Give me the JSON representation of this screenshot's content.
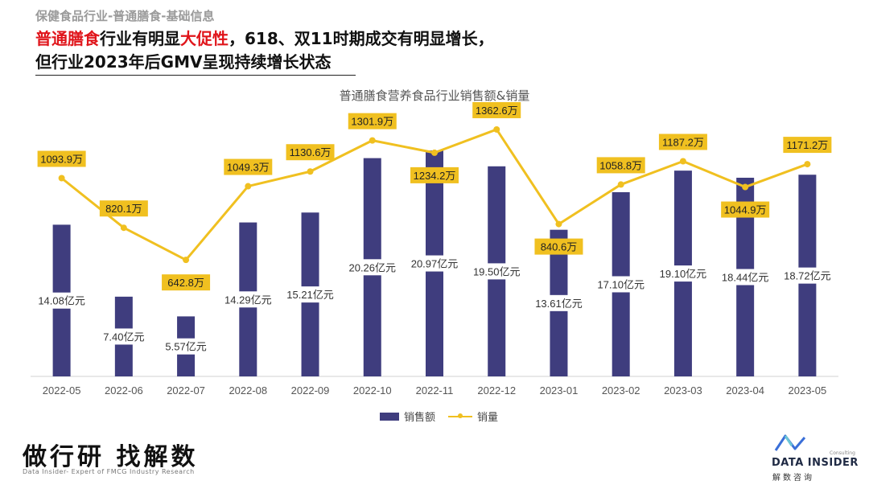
{
  "header": {
    "breadcrumb": "保健食品行业-普通膳食-基础信息",
    "headline_line1_red": "普通膳食",
    "headline_line1_a": "行业有明显",
    "headline_line1_red2": "大促性",
    "headline_line1_b": "，618、双11时期成交有明显增长，",
    "headline_line2": "但行业2023年后GMV呈现持续增长状态"
  },
  "chart_data": {
    "type": "bar+line",
    "title": "普通膳食营养食品行业销售额&销量",
    "categories": [
      "2022-05",
      "2022-06",
      "2022-07",
      "2022-08",
      "2022-09",
      "2022-10",
      "2022-11",
      "2022-12",
      "2023-01",
      "2023-02",
      "2023-03",
      "2023-04",
      "2023-05"
    ],
    "series": [
      {
        "name": "销售额",
        "type": "bar",
        "unit": "亿元",
        "values": [
          14.08,
          7.4,
          5.57,
          14.29,
          15.21,
          20.26,
          20.97,
          19.5,
          13.61,
          17.1,
          19.1,
          18.44,
          18.72
        ],
        "labels": [
          "14.08亿元",
          "7.40亿元",
          "5.57亿元",
          "14.29亿元",
          "15.21亿元",
          "20.26亿元",
          "20.97亿元",
          "19.50亿元",
          "13.61亿元",
          "17.10亿元",
          "19.10亿元",
          "18.44亿元",
          "18.72亿元"
        ],
        "color": "#3f3d7e"
      },
      {
        "name": "销量",
        "type": "line",
        "unit": "万",
        "values": [
          1093.9,
          820.1,
          642.8,
          1049.3,
          1130.6,
          1301.9,
          1234.2,
          1362.6,
          840.6,
          1058.8,
          1187.2,
          1044.9,
          1171.2
        ],
        "labels": [
          "1093.9万",
          "820.1万",
          "642.8万",
          "1049.3万",
          "1130.6万",
          "1301.9万",
          "1234.2万",
          "1362.6万",
          "840.6万",
          "1058.8万",
          "1187.2万",
          "1044.9万",
          "1171.2万"
        ],
        "color": "#f0c020"
      }
    ],
    "bar_ylim": [
      0,
      21.5
    ],
    "line_ylim": [
      0,
      1500
    ],
    "legend": [
      "销售额",
      "销量"
    ],
    "legend_position": "bottom-center",
    "grid": false
  },
  "footer": {
    "slogan": "做行研 找解数",
    "tagline": "Data Insider- Expert of FMCG Industry Research",
    "logo_consulting": "Consulting",
    "logo_name": "DATA INSIDER",
    "logo_cn": "解数咨询"
  }
}
